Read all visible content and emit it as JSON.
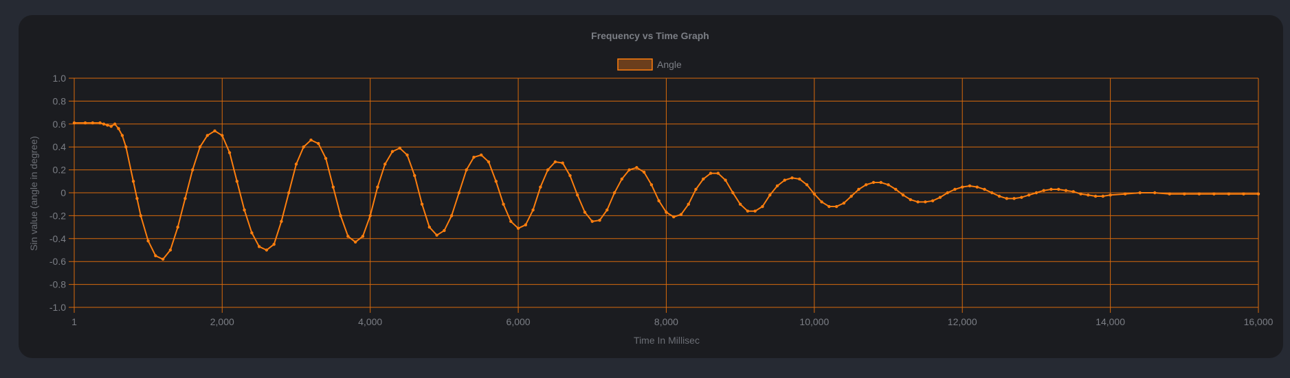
{
  "colors": {
    "background": "#262a33",
    "card": "#1b1c20",
    "series": "#ff7f0e",
    "grid": "#d96a0c",
    "legend_fill": "#6b3e1c",
    "text": "#7c7f86"
  },
  "chart_data": {
    "type": "line",
    "title": "Frequency vs Time Graph",
    "xlabel": "Time In Millisec",
    "ylabel": "Sin value (angle in degree)",
    "xlim": [
      1,
      16000
    ],
    "ylim": [
      -1.0,
      1.0
    ],
    "x_ticks": [
      1,
      2000,
      4000,
      6000,
      8000,
      10000,
      12000,
      14000,
      16000
    ],
    "x_tick_labels": [
      "1",
      "2,000",
      "4,000",
      "6,000",
      "8,000",
      "10,000",
      "12,000",
      "14,000",
      "16,000"
    ],
    "y_ticks": [
      1.0,
      0.8,
      0.6,
      0.4,
      0.2,
      0,
      -0.2,
      -0.4,
      -0.6,
      -0.8,
      -1.0
    ],
    "y_tick_labels": [
      "1.0",
      "0.8",
      "0.6",
      "0.4",
      "0.2",
      "0",
      "-0.2",
      "-0.4",
      "-0.6",
      "-0.8",
      "-1.0"
    ],
    "grid": true,
    "legend_position": "top-center",
    "series": [
      {
        "name": "Angle",
        "points": [
          [
            1,
            0.61
          ],
          [
            150,
            0.61
          ],
          [
            250,
            0.61
          ],
          [
            350,
            0.61
          ],
          [
            400,
            0.6
          ],
          [
            450,
            0.59
          ],
          [
            500,
            0.58
          ],
          [
            550,
            0.6
          ],
          [
            600,
            0.56
          ],
          [
            650,
            0.5
          ],
          [
            700,
            0.4
          ],
          [
            800,
            0.1
          ],
          [
            850,
            -0.05
          ],
          [
            900,
            -0.2
          ],
          [
            1000,
            -0.42
          ],
          [
            1100,
            -0.55
          ],
          [
            1200,
            -0.58
          ],
          [
            1300,
            -0.5
          ],
          [
            1400,
            -0.3
          ],
          [
            1500,
            -0.05
          ],
          [
            1600,
            0.2
          ],
          [
            1700,
            0.4
          ],
          [
            1800,
            0.5
          ],
          [
            1900,
            0.54
          ],
          [
            2000,
            0.5
          ],
          [
            2100,
            0.35
          ],
          [
            2200,
            0.1
          ],
          [
            2300,
            -0.15
          ],
          [
            2400,
            -0.35
          ],
          [
            2500,
            -0.47
          ],
          [
            2600,
            -0.5
          ],
          [
            2700,
            -0.45
          ],
          [
            2800,
            -0.25
          ],
          [
            2900,
            0.0
          ],
          [
            3000,
            0.25
          ],
          [
            3100,
            0.4
          ],
          [
            3200,
            0.46
          ],
          [
            3300,
            0.43
          ],
          [
            3400,
            0.3
          ],
          [
            3500,
            0.05
          ],
          [
            3600,
            -0.2
          ],
          [
            3700,
            -0.38
          ],
          [
            3800,
            -0.43
          ],
          [
            3900,
            -0.38
          ],
          [
            4000,
            -0.2
          ],
          [
            4100,
            0.05
          ],
          [
            4200,
            0.25
          ],
          [
            4300,
            0.36
          ],
          [
            4400,
            0.39
          ],
          [
            4500,
            0.33
          ],
          [
            4600,
            0.15
          ],
          [
            4700,
            -0.1
          ],
          [
            4800,
            -0.3
          ],
          [
            4900,
            -0.37
          ],
          [
            5000,
            -0.33
          ],
          [
            5100,
            -0.2
          ],
          [
            5200,
            0.0
          ],
          [
            5300,
            0.2
          ],
          [
            5400,
            0.31
          ],
          [
            5500,
            0.33
          ],
          [
            5600,
            0.27
          ],
          [
            5700,
            0.1
          ],
          [
            5800,
            -0.1
          ],
          [
            5900,
            -0.25
          ],
          [
            6000,
            -0.31
          ],
          [
            6100,
            -0.28
          ],
          [
            6200,
            -0.15
          ],
          [
            6300,
            0.05
          ],
          [
            6400,
            0.2
          ],
          [
            6500,
            0.27
          ],
          [
            6600,
            0.26
          ],
          [
            6700,
            0.15
          ],
          [
            6800,
            -0.02
          ],
          [
            6900,
            -0.17
          ],
          [
            7000,
            -0.25
          ],
          [
            7100,
            -0.24
          ],
          [
            7200,
            -0.15
          ],
          [
            7300,
            0.0
          ],
          [
            7400,
            0.12
          ],
          [
            7500,
            0.2
          ],
          [
            7600,
            0.22
          ],
          [
            7700,
            0.18
          ],
          [
            7800,
            0.07
          ],
          [
            7900,
            -0.07
          ],
          [
            8000,
            -0.17
          ],
          [
            8100,
            -0.21
          ],
          [
            8200,
            -0.19
          ],
          [
            8300,
            -0.1
          ],
          [
            8400,
            0.03
          ],
          [
            8500,
            0.12
          ],
          [
            8600,
            0.17
          ],
          [
            8700,
            0.17
          ],
          [
            8800,
            0.11
          ],
          [
            8900,
            0.0
          ],
          [
            9000,
            -0.1
          ],
          [
            9100,
            -0.16
          ],
          [
            9200,
            -0.16
          ],
          [
            9300,
            -0.12
          ],
          [
            9400,
            -0.02
          ],
          [
            9500,
            0.06
          ],
          [
            9600,
            0.11
          ],
          [
            9700,
            0.13
          ],
          [
            9800,
            0.12
          ],
          [
            9900,
            0.07
          ],
          [
            10000,
            -0.01
          ],
          [
            10100,
            -0.08
          ],
          [
            10200,
            -0.12
          ],
          [
            10300,
            -0.12
          ],
          [
            10400,
            -0.09
          ],
          [
            10500,
            -0.03
          ],
          [
            10600,
            0.03
          ],
          [
            10700,
            0.07
          ],
          [
            10800,
            0.09
          ],
          [
            10900,
            0.09
          ],
          [
            11000,
            0.07
          ],
          [
            11100,
            0.03
          ],
          [
            11200,
            -0.02
          ],
          [
            11300,
            -0.06
          ],
          [
            11400,
            -0.08
          ],
          [
            11500,
            -0.08
          ],
          [
            11600,
            -0.07
          ],
          [
            11700,
            -0.04
          ],
          [
            11800,
            0.0
          ],
          [
            11900,
            0.03
          ],
          [
            12000,
            0.05
          ],
          [
            12100,
            0.06
          ],
          [
            12200,
            0.05
          ],
          [
            12300,
            0.03
          ],
          [
            12400,
            0.0
          ],
          [
            12500,
            -0.03
          ],
          [
            12600,
            -0.05
          ],
          [
            12700,
            -0.05
          ],
          [
            12800,
            -0.04
          ],
          [
            12900,
            -0.02
          ],
          [
            13000,
            0.0
          ],
          [
            13100,
            0.02
          ],
          [
            13200,
            0.03
          ],
          [
            13300,
            0.03
          ],
          [
            13400,
            0.02
          ],
          [
            13500,
            0.01
          ],
          [
            13600,
            -0.01
          ],
          [
            13700,
            -0.02
          ],
          [
            13800,
            -0.03
          ],
          [
            13900,
            -0.03
          ],
          [
            14000,
            -0.02
          ],
          [
            14200,
            -0.01
          ],
          [
            14400,
            0.0
          ],
          [
            14600,
            0.0
          ],
          [
            14800,
            -0.01
          ],
          [
            15000,
            -0.01
          ],
          [
            15200,
            -0.01
          ],
          [
            15400,
            -0.01
          ],
          [
            15600,
            -0.01
          ],
          [
            15800,
            -0.01
          ],
          [
            16000,
            -0.01
          ]
        ]
      }
    ]
  }
}
